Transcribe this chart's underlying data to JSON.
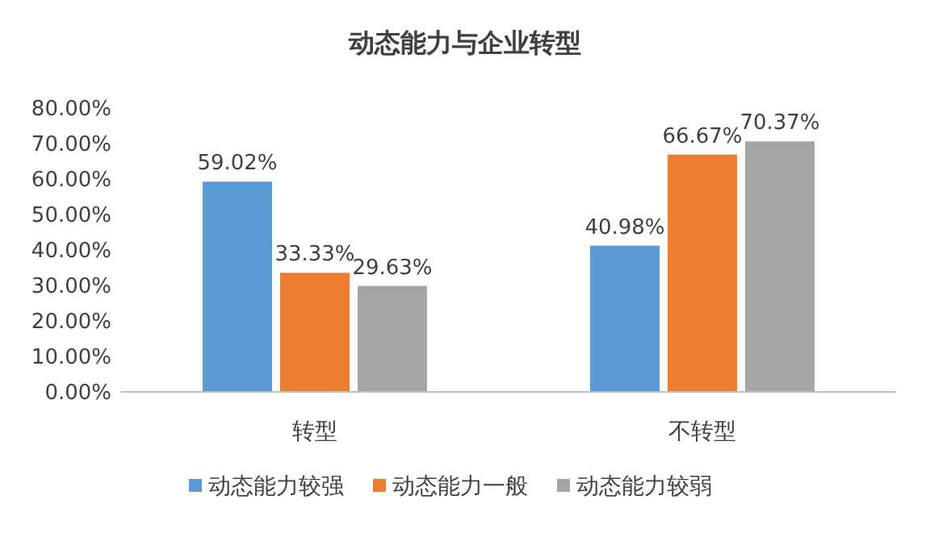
{
  "chart_data": {
    "type": "bar",
    "title": "动态能力与企业转型",
    "categories": [
      "转型",
      "不转型"
    ],
    "series": [
      {
        "name": "动态能力较强",
        "color": "#5b9bd5",
        "values": [
          59.02,
          40.98
        ],
        "value_labels": [
          "59.02%",
          "40.98%"
        ]
      },
      {
        "name": "动态能力一般",
        "color": "#ed7d31",
        "values": [
          33.33,
          66.67
        ],
        "value_labels": [
          "33.33%",
          "66.67%"
        ]
      },
      {
        "name": "动态能力较弱",
        "color": "#a5a5a5",
        "values": [
          29.63,
          70.37
        ],
        "value_labels": [
          "29.63%",
          "70.37%"
        ]
      }
    ],
    "ylim": [
      0,
      80
    ],
    "yticks": [
      {
        "value": 0,
        "label": "0.00%"
      },
      {
        "value": 10,
        "label": "10.00%"
      },
      {
        "value": 20,
        "label": "20.00%"
      },
      {
        "value": 30,
        "label": "30.00%"
      },
      {
        "value": 40,
        "label": "40.00%"
      },
      {
        "value": 50,
        "label": "50.00%"
      },
      {
        "value": 60,
        "label": "60.00%"
      },
      {
        "value": 70,
        "label": "70.00%"
      },
      {
        "value": 80,
        "label": "80.00%"
      }
    ],
    "grid": false,
    "legend": "bottom"
  }
}
